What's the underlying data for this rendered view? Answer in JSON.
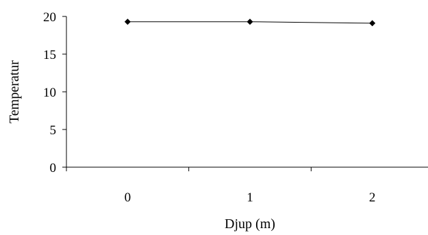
{
  "chart_data": {
    "type": "line",
    "title": "",
    "xlabel": "Djup (m)",
    "ylabel": "Temperatur",
    "categories": [
      "0",
      "1",
      "2"
    ],
    "series": [
      {
        "values": [
          19.3,
          19.3,
          19.1
        ]
      }
    ],
    "ylim": [
      0,
      20
    ],
    "yticks": [
      0,
      5,
      10,
      15,
      20
    ],
    "grid": false,
    "legend": "none",
    "marker": "diamond",
    "line_color": "#000000"
  }
}
